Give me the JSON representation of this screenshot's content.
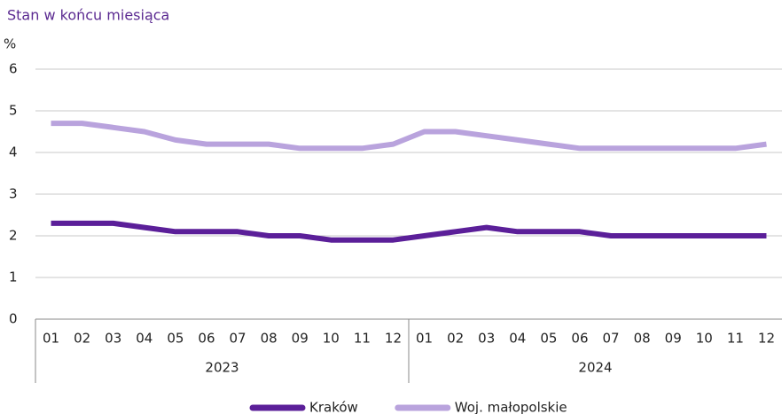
{
  "chart_data": {
    "type": "line",
    "subtitle": "Stan w końcu miesiąca",
    "ylabel": "%",
    "categories": [
      "01",
      "02",
      "03",
      "04",
      "05",
      "06",
      "07",
      "08",
      "09",
      "10",
      "11",
      "12",
      "01",
      "02",
      "03",
      "04",
      "05",
      "06",
      "07",
      "08",
      "09",
      "10",
      "11",
      "12"
    ],
    "groups": [
      "2023",
      "2024"
    ],
    "series": [
      {
        "name": "Kraków",
        "color": "#5b1f99",
        "values": [
          2.3,
          2.3,
          2.3,
          2.2,
          2.1,
          2.1,
          2.1,
          2.0,
          2.0,
          1.9,
          1.9,
          1.9,
          2.0,
          2.1,
          2.2,
          2.1,
          2.1,
          2.1,
          2.0,
          2.0,
          2.0,
          2.0,
          2.0,
          2.0
        ]
      },
      {
        "name": "Woj. małopolskie",
        "color": "#b9a3dd",
        "values": [
          4.7,
          4.7,
          4.6,
          4.5,
          4.3,
          4.2,
          4.2,
          4.2,
          4.1,
          4.1,
          4.1,
          4.2,
          4.5,
          4.5,
          4.4,
          4.3,
          4.2,
          4.1,
          4.1,
          4.1,
          4.1,
          4.1,
          4.1,
          4.2
        ]
      }
    ],
    "ylim": [
      0,
      6
    ],
    "yticks": [
      0,
      1,
      2,
      3,
      4,
      5,
      6
    ],
    "grid": true
  }
}
